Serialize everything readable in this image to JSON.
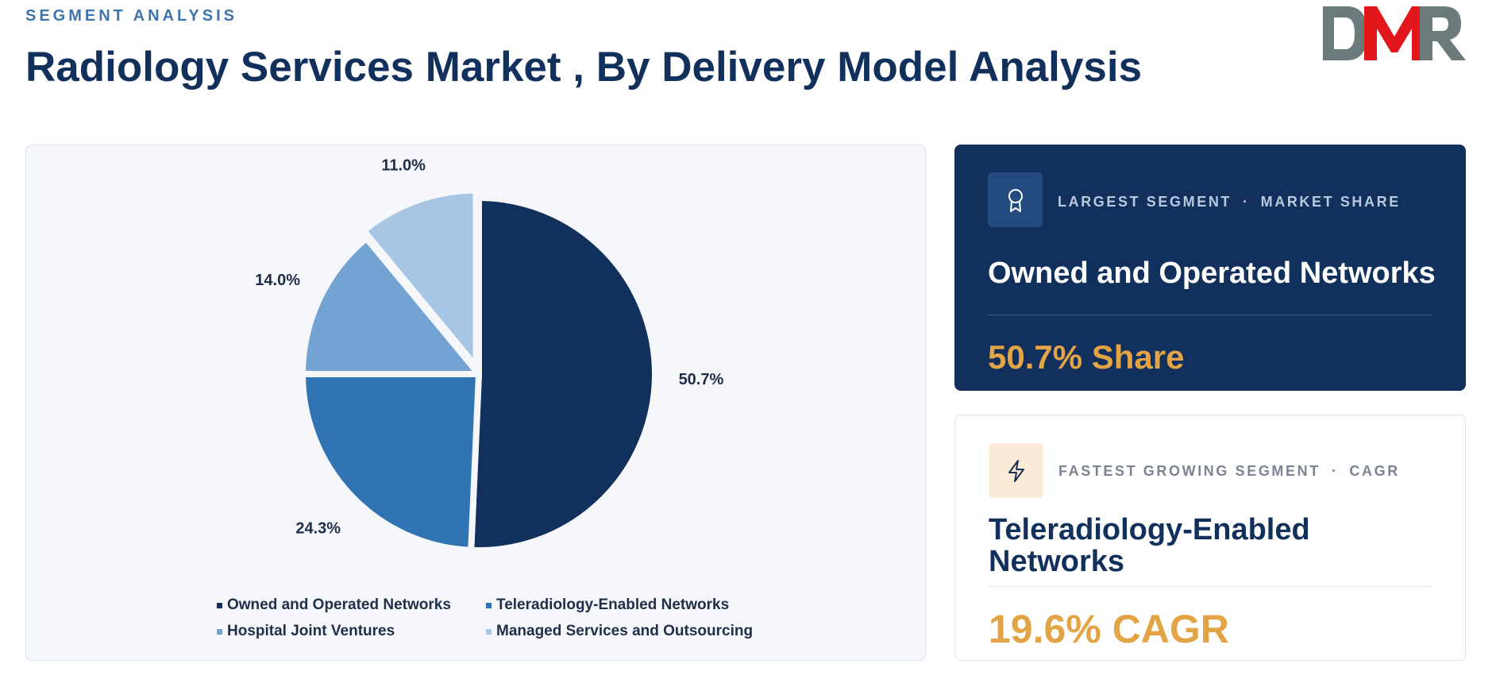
{
  "header": {
    "eyebrow": "SEGMENT ANALYSIS",
    "title": "Radiology Services Market , By Delivery Model Analysis"
  },
  "logo": {
    "text": "DMR",
    "colors": {
      "d": "#6b7a7a",
      "m": "#e3161b",
      "r": "#6b7a7a"
    }
  },
  "chart_data": {
    "type": "pie",
    "title": "",
    "categories": [
      "Owned and Operated Networks",
      "Teleradiology-Enabled Networks",
      "Hospital Joint Ventures",
      "Managed Services and Outsourcing"
    ],
    "values": [
      50.7,
      24.3,
      14.0,
      11.0
    ],
    "labels": [
      "50.7%",
      "24.3%",
      "14.0%",
      "11.0%"
    ],
    "colors": [
      "#12305c",
      "#3074b3",
      "#72a3d2",
      "#a6c6e4"
    ],
    "start_angle_deg": 0,
    "direction": "clockwise",
    "legend_position": "bottom"
  },
  "largest_segment": {
    "label": "LARGEST SEGMENT",
    "separator": "·",
    "label2": "MARKET SHARE",
    "icon": "award-ribbon-icon",
    "name": "Owned and Operated Networks",
    "metric": "50.7% Share"
  },
  "fastest_segment": {
    "label": "FASTEST GROWING SEGMENT",
    "separator": "·",
    "label2": "CAGR",
    "icon": "lightning-bolt-icon",
    "name": "Teleradiology-Enabled Networks",
    "metric": "19.6% CAGR"
  },
  "colors": {
    "navy": "#12305c",
    "accent_gold": "#e3a446",
    "eyebrow_blue": "#3e74ad"
  }
}
